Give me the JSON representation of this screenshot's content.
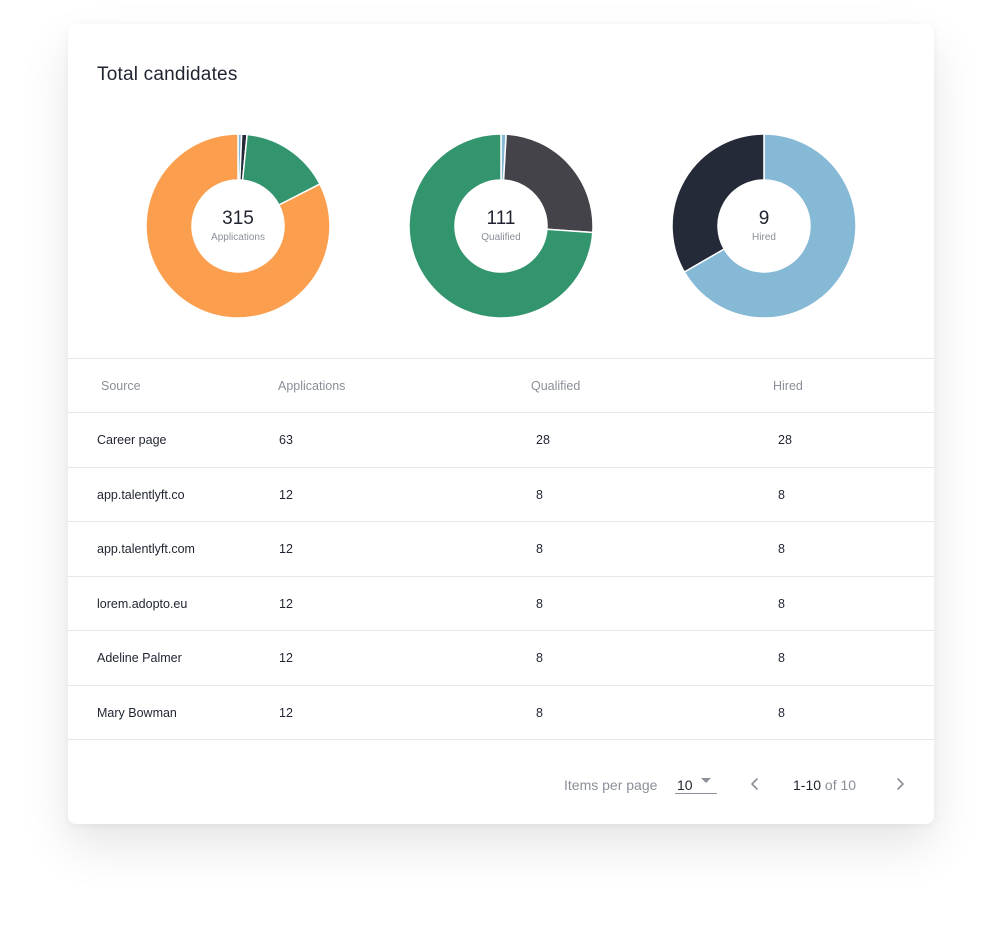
{
  "card": {
    "title": "Total candidates"
  },
  "donuts": [
    {
      "id": "applications",
      "total": "315",
      "label": "Applications",
      "segments": [
        {
          "value": 2,
          "color": "#86b9d6"
        },
        {
          "value": 3,
          "color": "#242a38"
        },
        {
          "value": 50,
          "color": "#33956e"
        },
        {
          "value": 260,
          "color": "#fb9f4f"
        }
      ]
    },
    {
      "id": "qualified",
      "total": "111",
      "label": "Qualified",
      "segments": [
        {
          "value": 1,
          "color": "#86b9d6"
        },
        {
          "value": 28,
          "color": "#444349"
        },
        {
          "value": 82,
          "color": "#33956e"
        }
      ]
    },
    {
      "id": "hired",
      "total": "9",
      "label": "Hired",
      "segments": [
        {
          "value": 6,
          "color": "#86b9d6"
        },
        {
          "value": 3,
          "color": "#242a38"
        }
      ]
    }
  ],
  "table": {
    "headers": [
      "Source",
      "Applications",
      "Qualified",
      "Hired"
    ],
    "rows": [
      [
        "Career page",
        "63",
        "28",
        "28"
      ],
      [
        "app.talentlyft.co",
        "12",
        "8",
        "8"
      ],
      [
        "app.talentlyft.com",
        "12",
        "8",
        "8"
      ],
      [
        "lorem.adopto.eu",
        "12",
        "8",
        "8"
      ],
      [
        "Adeline Palmer",
        "12",
        "8",
        "8"
      ],
      [
        "Mary Bowman",
        "12",
        "8",
        "8"
      ]
    ]
  },
  "pagination": {
    "items_per_page_label": "Items per page",
    "items_per_page_value": "10",
    "range": "1-10",
    "of_total": "of 10",
    "prev_icon": "chevron-left-icon",
    "next_icon": "chevron-right-icon"
  }
}
